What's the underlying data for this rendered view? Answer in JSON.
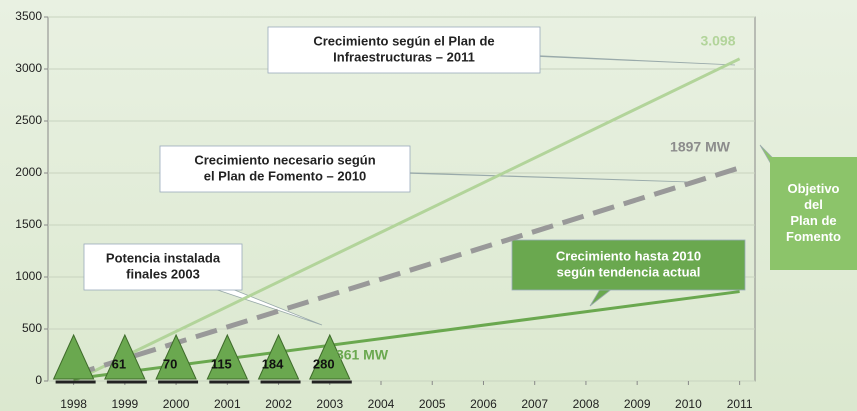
{
  "chart_data": {
    "type": "line",
    "xlim": [
      1997.5,
      2011.3
    ],
    "xticks": [
      1998,
      1999,
      2000,
      2001,
      2002,
      2003,
      2004,
      2005,
      2006,
      2007,
      2008,
      2009,
      2010,
      2011
    ],
    "ylim": [
      0,
      3500
    ],
    "yticks": [
      0,
      500,
      1000,
      1500,
      2000,
      2500,
      3000,
      3500
    ],
    "grid": true,
    "series": [
      {
        "color": "#b2d49a",
        "dash": false,
        "x": [
          1998,
          2011
        ],
        "values": [
          0,
          3098
        ]
      },
      {
        "color": "#999999",
        "dash": true,
        "x": [
          1998,
          2010,
          2011
        ],
        "values": [
          60,
          1897,
          2050
        ]
      },
      {
        "color": "#6aa84f",
        "dash": false,
        "x": [
          1998,
          2011
        ],
        "values": [
          20,
          860
        ]
      }
    ],
    "installed": {
      "x": [
        1998,
        1999,
        2000,
        2001,
        2002,
        2003
      ],
      "values": [
        null,
        61,
        70,
        115,
        184,
        280
      ],
      "color": "#6aa84f"
    },
    "value_annotations": [
      {
        "text": "3.098",
        "color": "#b2d49a"
      },
      {
        "text": "1897 MW",
        "color": "#8c8c8c"
      },
      {
        "text": "361 MW",
        "color": "#6aa84f"
      }
    ],
    "callouts": [
      {
        "lines": [
          "Crecimiento según el Plan de",
          "Infraestructuras – 2011"
        ],
        "fill": "#ffffff",
        "color": "#222222"
      },
      {
        "lines": [
          "Crecimiento necesario según",
          "el Plan de Fomento – 2010"
        ],
        "fill": "#ffffff",
        "color": "#222222"
      },
      {
        "lines": [
          "Potencia instalada",
          "finales 2003"
        ],
        "fill": "#ffffff",
        "color": "#222222"
      },
      {
        "lines": [
          "Crecimiento hasta 2010",
          "según tendencia actual"
        ],
        "fill": "#6aa84f",
        "color": "#ffffff"
      },
      {
        "lines": [
          "Objetivo",
          "del",
          "Plan de",
          "Fomento"
        ],
        "fill": "#8cc46a",
        "color": "#ffffff"
      }
    ]
  }
}
